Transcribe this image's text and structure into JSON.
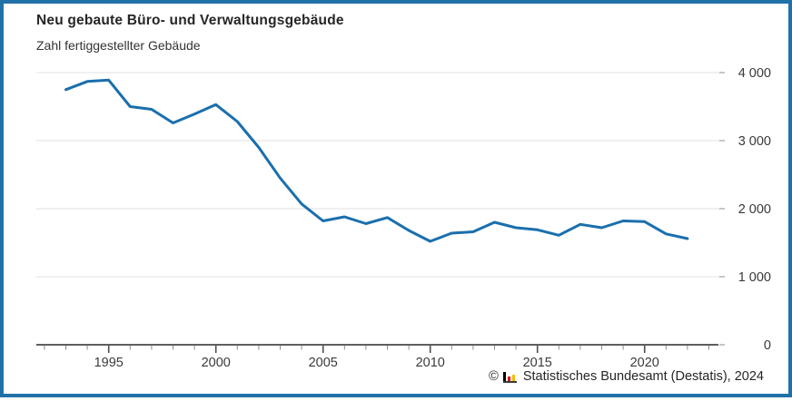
{
  "title": "Neu gebaute Büro- und Verwaltungsgebäude",
  "subtitle": "Zahl fertiggestellter Gebäude",
  "footer": {
    "copyright_symbol": "©",
    "source_text": "Statistisches Bundesamt (Destatis), 2024",
    "logo_colors": {
      "bar1": "#000000",
      "bar2": "#e1000f",
      "bar3": "#f0bc00",
      "base": "#3b3b3b"
    }
  },
  "colors": {
    "frame": "#2171a9",
    "line": "#1a6fad",
    "axis": "#5f5f5f",
    "minor_tick": "#8c8c8c",
    "grid": "#e8e8e8",
    "label": "#3a3a3a"
  },
  "chart_data": {
    "type": "line",
    "title": "Neu gebaute Büro- und Verwaltungsgebäude",
    "subtitle": "Zahl fertiggestellter Gebäude",
    "series_name": "Zahl fertiggestellter Gebäude",
    "x": [
      1993,
      1994,
      1995,
      1996,
      1997,
      1998,
      1999,
      2000,
      2001,
      2002,
      2003,
      2004,
      2005,
      2006,
      2007,
      2008,
      2009,
      2010,
      2011,
      2012,
      2013,
      2014,
      2015,
      2016,
      2017,
      2018,
      2019,
      2020,
      2021,
      2022
    ],
    "values": [
      3750,
      3870,
      3890,
      3500,
      3460,
      3260,
      3390,
      3530,
      3280,
      2900,
      2450,
      2070,
      1820,
      1880,
      1780,
      1870,
      1680,
      1520,
      1640,
      1660,
      1800,
      1720,
      1690,
      1610,
      1770,
      1720,
      1820,
      1810,
      1630,
      1560
    ],
    "xlabel": "",
    "ylabel": "",
    "x_axis_range": [
      1992,
      2023
    ],
    "x_labeled_ticks": [
      1995,
      2000,
      2005,
      2010,
      2015,
      2020
    ],
    "x_tick_every_year": true,
    "ylim": [
      0,
      4000
    ],
    "y_ticks": [
      {
        "value": 0,
        "label": "0"
      },
      {
        "value": 1000,
        "label": "1 000"
      },
      {
        "value": 2000,
        "label": "2 000"
      },
      {
        "value": 3000,
        "label": "3 000"
      },
      {
        "value": 4000,
        "label": "4 000"
      }
    ],
    "grid": "horizontal",
    "legend": "none",
    "y_axis_side": "right"
  }
}
